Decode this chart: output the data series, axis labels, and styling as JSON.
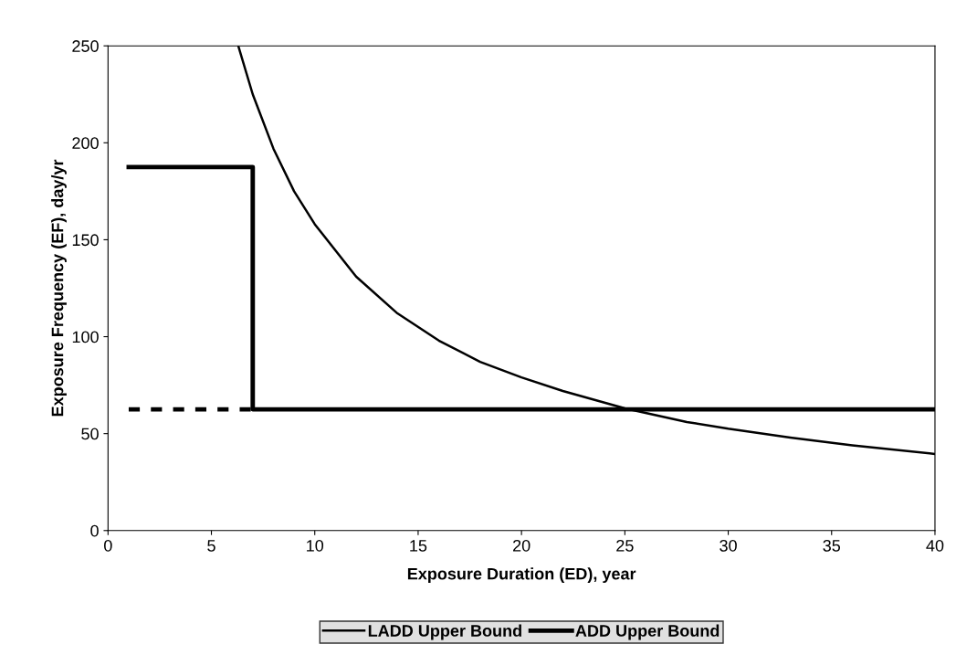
{
  "chart_data": {
    "type": "line",
    "xlabel": "Exposure Duration (ED), year",
    "ylabel": "Exposure Frequency (EF), day/yr",
    "xlim": [
      0,
      40
    ],
    "xticks": [
      0,
      5,
      10,
      15,
      20,
      25,
      30,
      35,
      40
    ],
    "ylim": [
      0,
      250
    ],
    "yticks": [
      0,
      50,
      100,
      150,
      200,
      250
    ],
    "grid": false,
    "legend": "bottom",
    "marker": "none",
    "series": [
      {
        "name": "LADD Upper Bound",
        "color": "#000000",
        "line_style": "solid",
        "x": [
          6.3,
          7,
          8,
          9,
          10,
          12,
          14,
          16,
          18,
          20,
          22,
          25,
          28,
          30,
          33,
          36,
          40
        ],
        "values": [
          250,
          225,
          197,
          175,
          158,
          131,
          112,
          98,
          87,
          79,
          72,
          63,
          56,
          52.5,
          48,
          44,
          39.5
        ]
      },
      {
        "name": "ADD Upper Bound",
        "color": "#000000",
        "line_style": "solid",
        "x": [
          1,
          7,
          7,
          40
        ],
        "values": [
          187.5,
          187.5,
          62.5,
          62.5
        ]
      },
      {
        "color": "#000000",
        "line_style": "dashed",
        "x": [
          1,
          7
        ],
        "values": [
          62.5,
          62.5
        ]
      }
    ]
  }
}
